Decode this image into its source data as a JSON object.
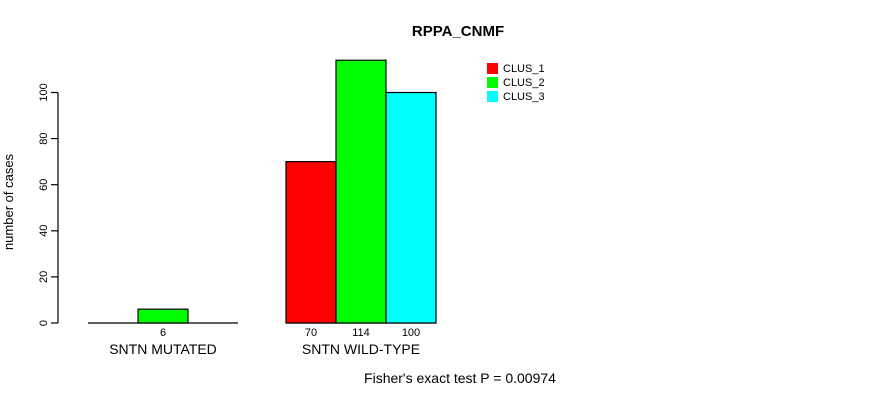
{
  "chart_data": {
    "type": "bar",
    "title": "RPPA_CNMF",
    "ylabel": "number of cases",
    "xlabel": "",
    "categories": [
      "SNTN MUTATED",
      "SNTN WILD-TYPE"
    ],
    "series": [
      {
        "name": "CLUS_1",
        "color": "#ff0000",
        "values": [
          0,
          70
        ]
      },
      {
        "name": "CLUS_2",
        "color": "#00ff00",
        "values": [
          6,
          114
        ]
      },
      {
        "name": "CLUS_3",
        "color": "#00ffff",
        "values": [
          0,
          100
        ]
      }
    ],
    "bar_value_labels": [
      [
        null,
        "6",
        null
      ],
      [
        "70",
        "114",
        "100"
      ]
    ],
    "yticks": [
      0,
      20,
      40,
      60,
      80,
      100
    ],
    "ylim": [
      0,
      120
    ],
    "grid": false,
    "legend": {
      "position": "top-right",
      "entries": [
        {
          "label": "CLUS_1",
          "color": "#ff0000"
        },
        {
          "label": "CLUS_2",
          "color": "#00ff00"
        },
        {
          "label": "CLUS_3",
          "color": "#00ffff"
        }
      ]
    },
    "annotation": "Fisher's exact test P = 0.00974",
    "axis_color": "#000000",
    "bar_border_color": "#000000",
    "background": "#ffffff"
  }
}
